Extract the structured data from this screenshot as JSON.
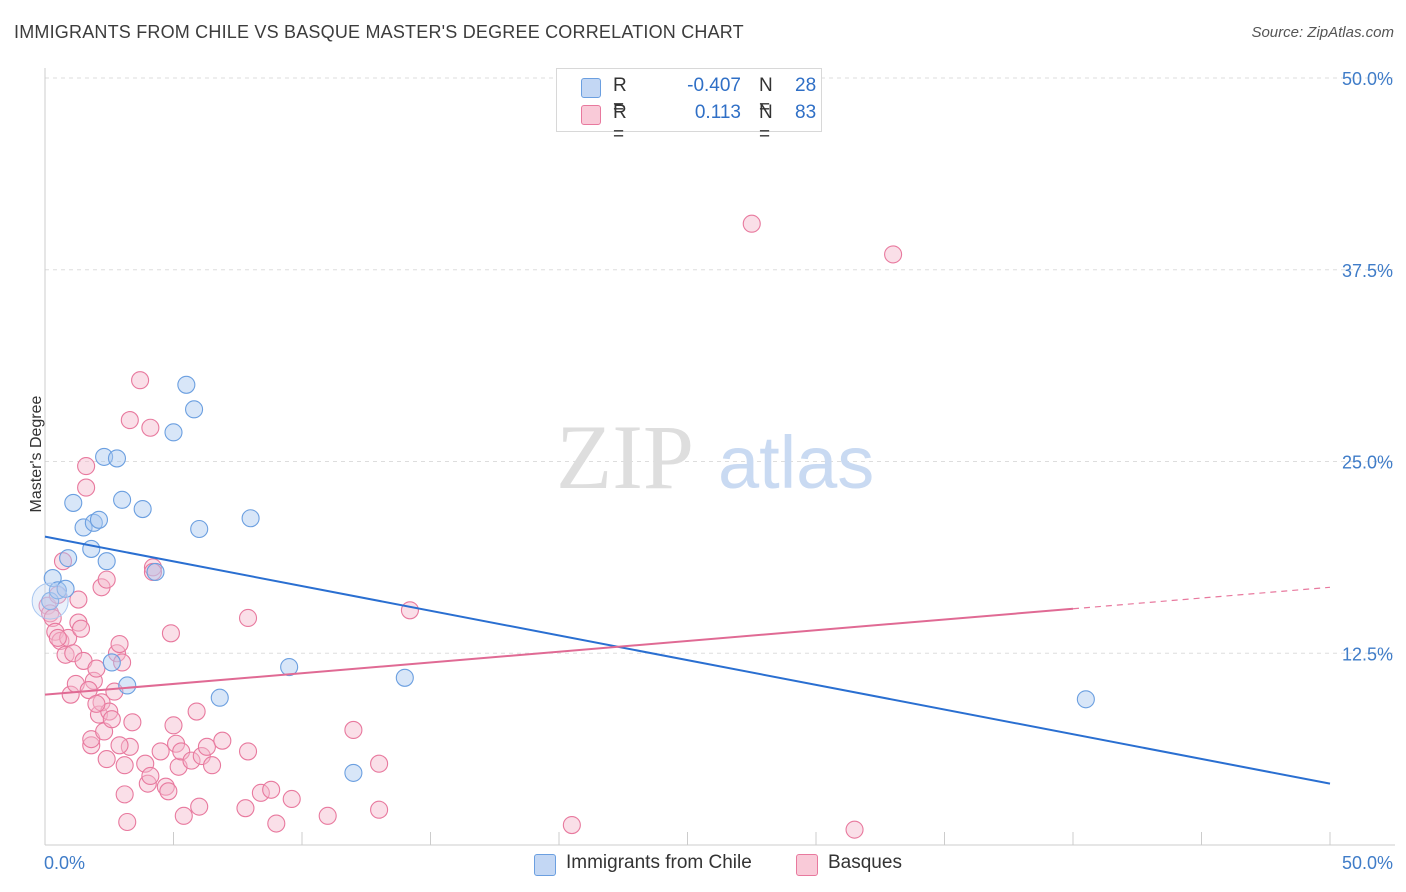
{
  "title": "IMMIGRANTS FROM CHILE VS BASQUE MASTER'S DEGREE CORRELATION CHART",
  "source": "Source: ZipAtlas.com",
  "watermark": {
    "zip": "ZIP",
    "atlas": "atlas"
  },
  "legend": {
    "series1": {
      "r_label": "R =",
      "r_value": "-0.407",
      "n_label": "N =",
      "n_value": "28"
    },
    "series2": {
      "r_label": "R =",
      "r_value": "0.113",
      "n_label": "N =",
      "n_value": "83"
    }
  },
  "chart_data": {
    "type": "scatter",
    "title": "IMMIGRANTS FROM CHILE VS BASQUE MASTER'S DEGREE CORRELATION CHART",
    "xlabel": "",
    "ylabel": "Master's Degree",
    "xlim": [
      0,
      50
    ],
    "ylim": [
      0,
      50
    ],
    "x_tick_labels": [
      "0.0%",
      "50.0%"
    ],
    "y_ticks": [
      12.5,
      25.0,
      37.5,
      50.0
    ],
    "y_tick_labels": [
      "12.5%",
      "25.0%",
      "37.5%",
      "50.0%"
    ],
    "grid": true,
    "legend_position": "top-center",
    "series": [
      {
        "name": "Immigrants from Chile",
        "color": "#6b9fe0",
        "fill": "#a9c7f0",
        "trend": {
          "x": [
            0,
            50
          ],
          "y": [
            20.1,
            4.0
          ]
        },
        "points": [
          [
            0.2,
            15.9
          ],
          [
            0.3,
            17.4
          ],
          [
            0.5,
            16.6
          ],
          [
            0.8,
            16.7
          ],
          [
            0.9,
            18.7
          ],
          [
            1.1,
            22.3
          ],
          [
            1.5,
            20.7
          ],
          [
            1.8,
            19.3
          ],
          [
            1.9,
            21.0
          ],
          [
            2.1,
            21.2
          ],
          [
            2.4,
            18.5
          ],
          [
            2.3,
            25.3
          ],
          [
            2.8,
            25.2
          ],
          [
            3.0,
            22.5
          ],
          [
            3.8,
            21.9
          ],
          [
            4.3,
            17.8
          ],
          [
            5.0,
            26.9
          ],
          [
            5.5,
            30.0
          ],
          [
            5.8,
            28.4
          ],
          [
            6.0,
            20.6
          ],
          [
            8.0,
            21.3
          ],
          [
            2.6,
            11.9
          ],
          [
            3.2,
            10.4
          ],
          [
            6.8,
            9.6
          ],
          [
            9.5,
            11.6
          ],
          [
            12.0,
            4.7
          ],
          [
            14.0,
            10.9
          ],
          [
            40.5,
            9.5
          ]
        ]
      },
      {
        "name": "Basques",
        "color": "#e8799e",
        "fill": "#f5b8cb",
        "trend": {
          "x": [
            0,
            40
          ],
          "y": [
            9.8,
            15.4
          ]
        },
        "trend_dashed": {
          "x": [
            40,
            50
          ],
          "y": [
            15.4,
            16.8
          ]
        },
        "points": [
          [
            0.1,
            15.6
          ],
          [
            0.2,
            15.1
          ],
          [
            0.3,
            14.8
          ],
          [
            0.4,
            13.9
          ],
          [
            0.5,
            16.3
          ],
          [
            0.6,
            13.3
          ],
          [
            0.7,
            18.5
          ],
          [
            0.8,
            12.4
          ],
          [
            0.9,
            13.5
          ],
          [
            1.0,
            9.8
          ],
          [
            1.1,
            12.5
          ],
          [
            1.2,
            10.5
          ],
          [
            1.3,
            14.5
          ],
          [
            1.4,
            14.1
          ],
          [
            1.5,
            12.0
          ],
          [
            1.6,
            24.7
          ],
          [
            1.6,
            23.3
          ],
          [
            1.3,
            16.0
          ],
          [
            1.8,
            6.5
          ],
          [
            1.8,
            6.9
          ],
          [
            1.9,
            10.7
          ],
          [
            2.0,
            11.5
          ],
          [
            2.1,
            8.5
          ],
          [
            2.2,
            9.3
          ],
          [
            2.3,
            7.4
          ],
          [
            2.4,
            5.6
          ],
          [
            2.5,
            8.7
          ],
          [
            2.2,
            16.8
          ],
          [
            2.4,
            17.3
          ],
          [
            2.6,
            8.2
          ],
          [
            2.7,
            10.0
          ],
          [
            2.8,
            12.5
          ],
          [
            2.9,
            13.1
          ],
          [
            3.0,
            11.9
          ],
          [
            3.1,
            3.3
          ],
          [
            3.2,
            1.5
          ],
          [
            3.1,
            5.2
          ],
          [
            3.3,
            6.4
          ],
          [
            3.4,
            8.0
          ],
          [
            3.3,
            27.7
          ],
          [
            3.7,
            30.3
          ],
          [
            4.1,
            27.2
          ],
          [
            4.2,
            18.1
          ],
          [
            3.9,
            5.3
          ],
          [
            4.0,
            4.0
          ],
          [
            4.1,
            4.5
          ],
          [
            4.5,
            6.1
          ],
          [
            4.7,
            3.8
          ],
          [
            4.8,
            3.5
          ],
          [
            4.9,
            13.8
          ],
          [
            5.0,
            7.8
          ],
          [
            5.1,
            6.6
          ],
          [
            5.2,
            5.1
          ],
          [
            5.3,
            6.1
          ],
          [
            5.4,
            1.9
          ],
          [
            5.7,
            5.5
          ],
          [
            5.9,
            8.7
          ],
          [
            6.0,
            2.5
          ],
          [
            6.1,
            5.8
          ],
          [
            6.3,
            6.4
          ],
          [
            6.5,
            5.2
          ],
          [
            6.9,
            6.8
          ],
          [
            7.8,
            2.4
          ],
          [
            7.9,
            6.1
          ],
          [
            7.9,
            14.8
          ],
          [
            8.4,
            3.4
          ],
          [
            8.8,
            3.6
          ],
          [
            9.0,
            1.4
          ],
          [
            9.6,
            3.0
          ],
          [
            11.0,
            1.9
          ],
          [
            12.0,
            7.5
          ],
          [
            13.0,
            2.3
          ],
          [
            13.0,
            5.3
          ],
          [
            14.2,
            15.3
          ],
          [
            20.5,
            1.3
          ],
          [
            27.5,
            40.5
          ],
          [
            31.5,
            1.0
          ],
          [
            33.0,
            38.5
          ],
          [
            0.5,
            13.5
          ],
          [
            1.7,
            10.1
          ],
          [
            2.0,
            9.2
          ],
          [
            4.2,
            17.8
          ],
          [
            2.9,
            6.5
          ]
        ]
      }
    ]
  }
}
